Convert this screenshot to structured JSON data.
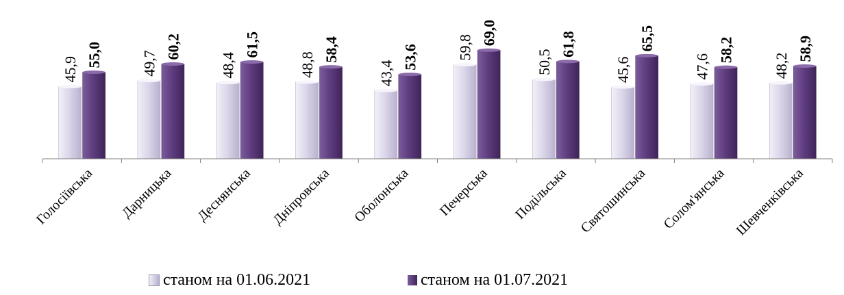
{
  "chart_data": {
    "type": "bar",
    "title": "",
    "xlabel": "",
    "ylabel": "",
    "ylim": [
      0,
      80
    ],
    "grid": false,
    "legend_position": "bottom",
    "categories": [
      "Голосіївська",
      "Дарницька",
      "Деснянська",
      "Дніпровська",
      "Оболонська",
      "Печерська",
      "Подільська",
      "Святошинська",
      "Солом'янська",
      "Шевченківська"
    ],
    "series": [
      {
        "name": "станом на 01.06.2021",
        "color": "#d9d4e6",
        "values": [
          45.9,
          49.7,
          48.4,
          48.8,
          43.4,
          59.8,
          50.5,
          45.6,
          47.6,
          48.2
        ],
        "labels": [
          "45,9",
          "49,7",
          "48,4",
          "48,8",
          "43,4",
          "59,8",
          "50,5",
          "45,6",
          "47,6",
          "48,2"
        ],
        "label_weight": "normal"
      },
      {
        "name": "станом на 01.07.2021",
        "color": "#5f3d80",
        "values": [
          55.0,
          60.2,
          61.5,
          58.4,
          53.6,
          69.0,
          61.8,
          65.5,
          58.2,
          58.9
        ],
        "labels": [
          "55,0",
          "60,2",
          "61,5",
          "58,4",
          "53,6",
          "69,0",
          "61,8",
          "65,5",
          "58,2",
          "58,9"
        ],
        "label_weight": "bold"
      }
    ]
  }
}
